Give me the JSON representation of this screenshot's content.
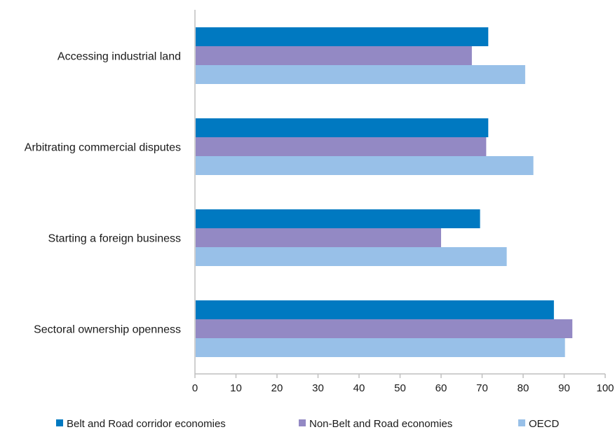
{
  "chart_data": {
    "type": "bar",
    "orientation": "horizontal",
    "title": "",
    "xlabel": "",
    "ylabel": "",
    "categories": [
      "Accessing industrial land",
      "Arbitrating commercial disputes",
      "Starting a foreign business",
      "Sectoral ownership openness"
    ],
    "series": [
      {
        "name": "Belt and Road corridor economies",
        "color": "#0079c1",
        "values": [
          71.5,
          71.5,
          69.5,
          87.5
        ]
      },
      {
        "name": "Non-Belt and Road economies",
        "color": "#9389c4",
        "values": [
          67.5,
          71.0,
          60.0,
          92.0
        ]
      },
      {
        "name": "OECD",
        "color": "#98c0e8",
        "values": [
          80.5,
          82.5,
          76.0,
          90.2
        ]
      }
    ],
    "xlim": [
      0,
      100
    ],
    "xticks": [
      "0",
      "10",
      "20",
      "30",
      "40",
      "50",
      "60",
      "70",
      "80",
      "90",
      "100"
    ],
    "grid": false,
    "legend_position": "bottom"
  }
}
